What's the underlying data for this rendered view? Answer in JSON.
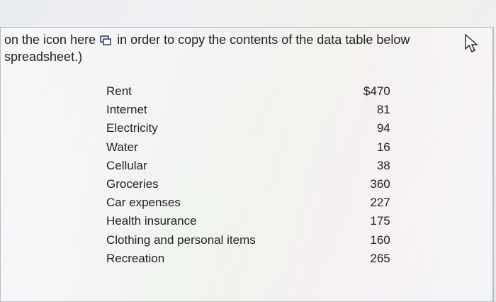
{
  "instruction": {
    "before_icon": "on the icon here",
    "after_icon": "in order to copy the contents of the data table below",
    "line2": "spreadsheet.)"
  },
  "table": {
    "rows": [
      [
        "Rent",
        "$470"
      ],
      [
        "Internet",
        "81"
      ],
      [
        "Electricity",
        "94"
      ],
      [
        "Water",
        "16"
      ],
      [
        "Cellular",
        "38"
      ],
      [
        "Groceries",
        "360"
      ],
      [
        "Car expenses",
        "227"
      ],
      [
        "Health insurance",
        "175"
      ],
      [
        "Clothing and personal items",
        "160"
      ],
      [
        "Recreation",
        "265"
      ]
    ]
  }
}
